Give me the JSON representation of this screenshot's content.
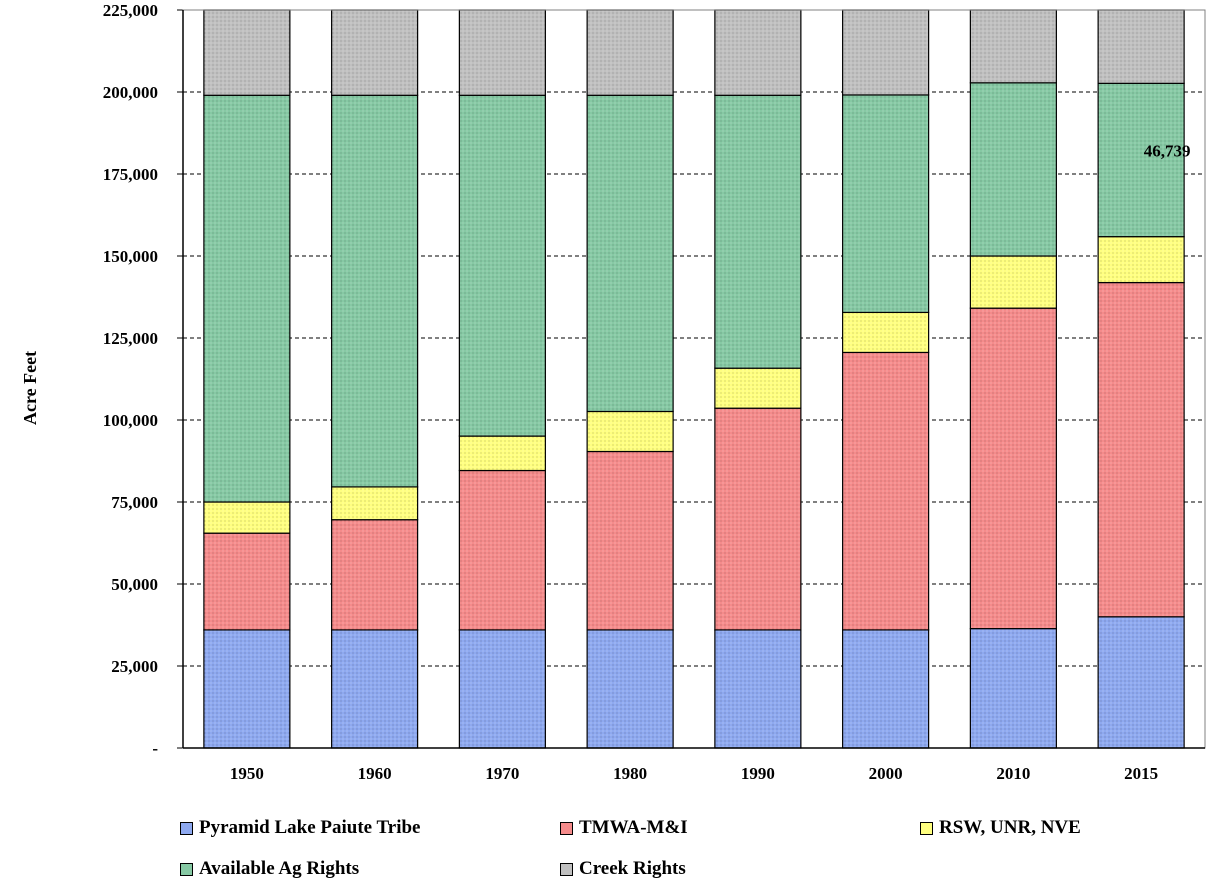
{
  "chart_data": {
    "type": "bar",
    "stacked": true,
    "title": "",
    "xlabel": "",
    "ylabel": "Acre Feet",
    "ylim": [
      0,
      225000
    ],
    "yticks": [
      0,
      25000,
      50000,
      75000,
      100000,
      125000,
      150000,
      175000,
      200000,
      225000
    ],
    "ytick_labels": [
      "-",
      "25,000",
      "50,000",
      "75,000",
      "100,000",
      "125,000",
      "150,000",
      "175,000",
      "200,000",
      "225,000"
    ],
    "grid": "horizontal dashed",
    "legend_position": "bottom",
    "categories": [
      "1950",
      "1960",
      "1970",
      "1980",
      "1990",
      "2000",
      "2010",
      "2015"
    ],
    "series": [
      {
        "name": "Pyramid Lake Paiute Tribe",
        "color": "#8ea9f0",
        "values": [
          36000,
          36000,
          36000,
          36000,
          36000,
          36000,
          36400,
          40000
        ]
      },
      {
        "name": "TMWA-M&I",
        "color": "#f58b8b",
        "values": [
          29500,
          33600,
          48600,
          54400,
          67600,
          84600,
          97700,
          101900
        ]
      },
      {
        "name": "RSW, UNR, NVE",
        "color": "#ffff80",
        "values": [
          9500,
          10000,
          10500,
          12200,
          12200,
          12200,
          15900,
          14000
        ]
      },
      {
        "name": "Available Ag Rights",
        "color": "#86c9a4",
        "values": [
          124000,
          119400,
          103900,
          96400,
          83200,
          66300,
          52800,
          46739
        ]
      },
      {
        "name": "Creek Rights",
        "color": "#c0c0c0",
        "values": [
          26000,
          26000,
          26000,
          26000,
          26000,
          25900,
          22200,
          22361
        ]
      }
    ],
    "annotations": [
      {
        "category": "2015",
        "series": "Available Ag Rights",
        "text": "46,739"
      }
    ]
  }
}
